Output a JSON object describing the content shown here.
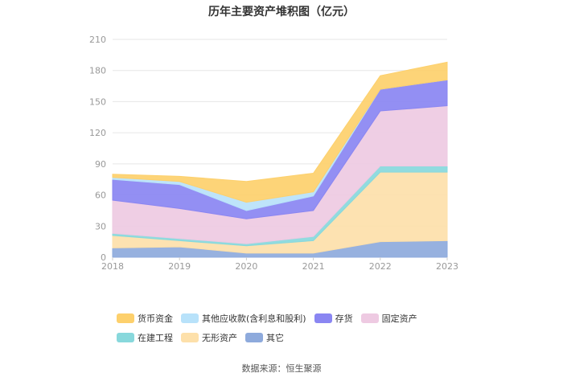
{
  "chart_data": {
    "type": "area",
    "stacked": true,
    "title": "历年主要资产堆积图（亿元）",
    "x": [
      "2018",
      "2019",
      "2020",
      "2021",
      "2022",
      "2023"
    ],
    "ylim": [
      0,
      210
    ],
    "yticks": [
      0,
      30,
      60,
      90,
      120,
      150,
      180,
      210
    ],
    "grid": true,
    "legend_position": "bottom",
    "series": [
      {
        "name": "其它",
        "color": "#8eaadc",
        "values": [
          9,
          10,
          4,
          4,
          15,
          16
        ]
      },
      {
        "name": "无形资产",
        "color": "#fde0aa",
        "values": [
          12,
          6,
          7,
          12,
          67,
          66
        ]
      },
      {
        "name": "在建工程",
        "color": "#88d8dc",
        "values": [
          2,
          2,
          2,
          4,
          6,
          6
        ]
      },
      {
        "name": "固定资产",
        "color": "#eecae2",
        "values": [
          32,
          29,
          24,
          25,
          53,
          58
        ]
      },
      {
        "name": "存货",
        "color": "#8a86f2",
        "values": [
          20,
          23,
          8,
          14,
          21,
          25
        ]
      },
      {
        "name": "其他应收款(含利息和股利)",
        "color": "#b8e2fa",
        "values": [
          2,
          3,
          8,
          4,
          0,
          0
        ]
      },
      {
        "name": "货币资金",
        "color": "#fdd06c",
        "values": [
          3,
          5,
          20,
          18,
          13,
          17
        ]
      }
    ]
  },
  "legend_order": [
    "货币资金",
    "其他应收款(含利息和股利)",
    "存货",
    "固定资产",
    "在建工程",
    "无形资产",
    "其它"
  ],
  "source": "数据来源：恒生聚源"
}
